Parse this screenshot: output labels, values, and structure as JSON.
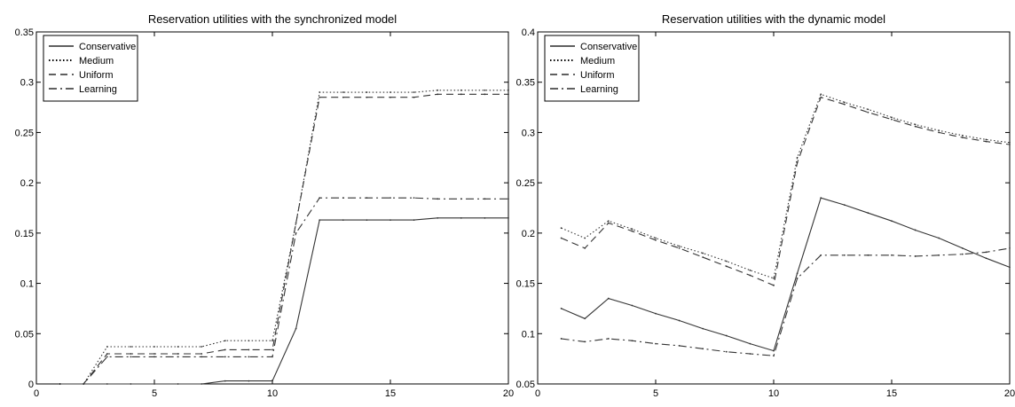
{
  "chart_data": [
    {
      "type": "line",
      "title": "Reservation utilities with the synchronized model",
      "xlabel": "",
      "ylabel": "",
      "xlim": [
        0,
        20
      ],
      "ylim": [
        0,
        0.35
      ],
      "xticks": [
        0,
        5,
        10,
        15,
        20
      ],
      "xtick_labels": [
        "0",
        "5",
        "10",
        "15",
        "20"
      ],
      "yticks": [
        0,
        0.05,
        0.1,
        0.15,
        0.2,
        0.25,
        0.3,
        0.35
      ],
      "ytick_labels": [
        "0",
        "0.05",
        "0.1",
        "0.15",
        "0.2",
        "0.25",
        "0.3",
        "0.35"
      ],
      "grid": false,
      "legend_position": "top-left",
      "x": [
        1,
        2,
        3,
        4,
        5,
        6,
        7,
        8,
        9,
        10,
        11,
        12,
        13,
        14,
        15,
        16,
        17,
        18,
        19,
        20
      ],
      "series": [
        {
          "name": "Conservative",
          "style": "solid",
          "values": [
            0,
            0,
            0,
            0,
            0,
            0,
            0,
            0.003,
            0.003,
            0.003,
            0.055,
            0.163,
            0.163,
            0.163,
            0.163,
            0.163,
            0.165,
            0.165,
            0.165,
            0.165
          ]
        },
        {
          "name": "Medium",
          "style": "dotted",
          "values": [
            0,
            0,
            0.037,
            0.037,
            0.037,
            0.037,
            0.037,
            0.043,
            0.043,
            0.043,
            0.16,
            0.29,
            0.29,
            0.29,
            0.29,
            0.29,
            0.292,
            0.292,
            0.292,
            0.292
          ]
        },
        {
          "name": "Uniform",
          "style": "dashed",
          "values": [
            0,
            0,
            0.03,
            0.03,
            0.03,
            0.03,
            0.03,
            0.034,
            0.034,
            0.034,
            0.16,
            0.285,
            0.285,
            0.285,
            0.285,
            0.285,
            0.288,
            0.288,
            0.288,
            0.288
          ]
        },
        {
          "name": "Learning",
          "style": "dashdot",
          "values": [
            0,
            0,
            0.027,
            0.027,
            0.027,
            0.027,
            0.027,
            0.027,
            0.027,
            0.027,
            0.15,
            0.185,
            0.185,
            0.185,
            0.185,
            0.185,
            0.184,
            0.184,
            0.184,
            0.184
          ]
        }
      ]
    },
    {
      "type": "line",
      "title": "Reservation utilities with the dynamic model",
      "xlabel": "",
      "ylabel": "",
      "xlim": [
        0,
        20
      ],
      "ylim": [
        0.05,
        0.4
      ],
      "xticks": [
        0,
        5,
        10,
        15,
        20
      ],
      "xtick_labels": [
        "0",
        "5",
        "10",
        "15",
        "20"
      ],
      "yticks": [
        0.05,
        0.1,
        0.15,
        0.2,
        0.25,
        0.3,
        0.35,
        0.4
      ],
      "ytick_labels": [
        "0.05",
        "0.1",
        "0.15",
        "0.2",
        "0.25",
        "0.3",
        "0.35",
        "0.4"
      ],
      "grid": false,
      "legend_position": "top-left",
      "x": [
        1,
        2,
        3,
        4,
        5,
        6,
        7,
        8,
        9,
        10,
        11,
        12,
        13,
        14,
        15,
        16,
        17,
        18,
        19,
        20
      ],
      "series": [
        {
          "name": "Conservative",
          "style": "solid",
          "values": [
            0.125,
            0.115,
            0.135,
            0.128,
            0.12,
            0.113,
            0.105,
            0.098,
            0.09,
            0.083,
            0.16,
            0.235,
            0.228,
            0.22,
            0.212,
            0.203,
            0.195,
            0.185,
            0.175,
            0.166
          ]
        },
        {
          "name": "Medium",
          "style": "dotted",
          "values": [
            0.205,
            0.195,
            0.212,
            0.204,
            0.195,
            0.187,
            0.18,
            0.172,
            0.163,
            0.155,
            0.275,
            0.338,
            0.33,
            0.323,
            0.315,
            0.308,
            0.302,
            0.297,
            0.293,
            0.29
          ]
        },
        {
          "name": "Uniform",
          "style": "dashed",
          "values": [
            0.195,
            0.185,
            0.21,
            0.202,
            0.193,
            0.185,
            0.176,
            0.167,
            0.158,
            0.148,
            0.27,
            0.335,
            0.328,
            0.32,
            0.313,
            0.306,
            0.3,
            0.295,
            0.291,
            0.288
          ]
        },
        {
          "name": "Learning",
          "style": "dashdot",
          "values": [
            0.095,
            0.092,
            0.095,
            0.093,
            0.09,
            0.088,
            0.085,
            0.082,
            0.08,
            0.078,
            0.155,
            0.178,
            0.178,
            0.178,
            0.178,
            0.177,
            0.178,
            0.179,
            0.181,
            0.185
          ]
        }
      ]
    }
  ]
}
